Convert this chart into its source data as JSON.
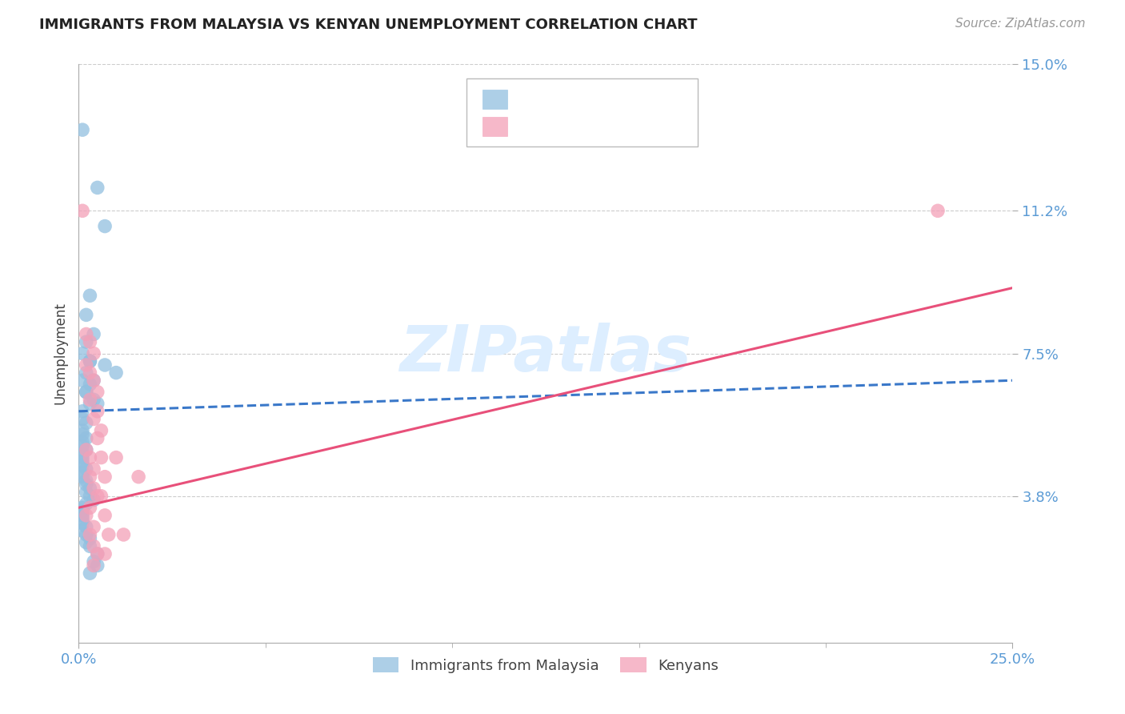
{
  "title": "IMMIGRANTS FROM MALAYSIA VS KENYAN UNEMPLOYMENT CORRELATION CHART",
  "source": "Source: ZipAtlas.com",
  "ylabel": "Unemployment",
  "xlim": [
    0.0,
    0.25
  ],
  "ylim": [
    0.0,
    0.15
  ],
  "xticks": [
    0.0,
    0.25
  ],
  "xticklabels": [
    "0.0%",
    "25.0%"
  ],
  "yticks": [
    0.038,
    0.075,
    0.112,
    0.15
  ],
  "yticklabels": [
    "3.8%",
    "7.5%",
    "11.2%",
    "15.0%"
  ],
  "tick_color": "#5b9bd5",
  "blue_dot_color": "#92c0e0",
  "pink_dot_color": "#f4a0b8",
  "blue_line_color": "#3a78c9",
  "pink_line_color": "#e8507a",
  "watermark": "ZIPatlas",
  "watermark_color": "#ddeeff",
  "label1": "Immigrants from Malaysia",
  "label2": "Kenyans",
  "legend_r1_color": "#5b9bd5",
  "legend_n1_color": "#5b9bd5",
  "legend_r2_color": "#e87a97",
  "legend_n2_color": "#e87a97",
  "blue_line_x0": 0.0,
  "blue_line_x1": 0.25,
  "blue_line_y0": 0.06,
  "blue_line_y1": 0.068,
  "pink_line_x0": 0.0,
  "pink_line_x1": 0.25,
  "pink_line_y0": 0.035,
  "pink_line_y1": 0.092,
  "blue_dots": [
    [
      0.001,
      0.133
    ],
    [
      0.005,
      0.118
    ],
    [
      0.007,
      0.108
    ],
    [
      0.003,
      0.09
    ],
    [
      0.002,
      0.085
    ],
    [
      0.004,
      0.08
    ],
    [
      0.002,
      0.078
    ],
    [
      0.001,
      0.075
    ],
    [
      0.003,
      0.073
    ],
    [
      0.002,
      0.07
    ],
    [
      0.001,
      0.068
    ],
    [
      0.003,
      0.067
    ],
    [
      0.002,
      0.065
    ],
    [
      0.004,
      0.063
    ],
    [
      0.003,
      0.062
    ],
    [
      0.003,
      0.073
    ],
    [
      0.004,
      0.068
    ],
    [
      0.002,
      0.065
    ],
    [
      0.005,
      0.062
    ],
    [
      0.001,
      0.06
    ],
    [
      0.001,
      0.058
    ],
    [
      0.002,
      0.057
    ],
    [
      0.001,
      0.055
    ],
    [
      0.001,
      0.054
    ],
    [
      0.002,
      0.053
    ],
    [
      0.001,
      0.052
    ],
    [
      0.001,
      0.051
    ],
    [
      0.002,
      0.05
    ],
    [
      0.001,
      0.049
    ],
    [
      0.001,
      0.048
    ],
    [
      0.001,
      0.047
    ],
    [
      0.001,
      0.046
    ],
    [
      0.002,
      0.045
    ],
    [
      0.001,
      0.044
    ],
    [
      0.001,
      0.043
    ],
    [
      0.002,
      0.042
    ],
    [
      0.002,
      0.041
    ],
    [
      0.003,
      0.04
    ],
    [
      0.002,
      0.039
    ],
    [
      0.003,
      0.038
    ],
    [
      0.004,
      0.037
    ],
    [
      0.002,
      0.036
    ],
    [
      0.001,
      0.035
    ],
    [
      0.001,
      0.034
    ],
    [
      0.001,
      0.033
    ],
    [
      0.001,
      0.032
    ],
    [
      0.001,
      0.031
    ],
    [
      0.002,
      0.03
    ],
    [
      0.001,
      0.029
    ],
    [
      0.002,
      0.028
    ],
    [
      0.003,
      0.027
    ],
    [
      0.002,
      0.026
    ],
    [
      0.003,
      0.025
    ],
    [
      0.005,
      0.023
    ],
    [
      0.007,
      0.072
    ],
    [
      0.01,
      0.07
    ],
    [
      0.004,
      0.021
    ],
    [
      0.005,
      0.02
    ],
    [
      0.003,
      0.018
    ]
  ],
  "pink_dots": [
    [
      0.001,
      0.112
    ],
    [
      0.002,
      0.08
    ],
    [
      0.003,
      0.078
    ],
    [
      0.004,
      0.075
    ],
    [
      0.002,
      0.072
    ],
    [
      0.003,
      0.07
    ],
    [
      0.004,
      0.068
    ],
    [
      0.005,
      0.065
    ],
    [
      0.003,
      0.063
    ],
    [
      0.005,
      0.06
    ],
    [
      0.004,
      0.058
    ],
    [
      0.006,
      0.055
    ],
    [
      0.005,
      0.053
    ],
    [
      0.002,
      0.05
    ],
    [
      0.003,
      0.048
    ],
    [
      0.004,
      0.045
    ],
    [
      0.003,
      0.043
    ],
    [
      0.004,
      0.04
    ],
    [
      0.005,
      0.038
    ],
    [
      0.003,
      0.035
    ],
    [
      0.002,
      0.033
    ],
    [
      0.004,
      0.03
    ],
    [
      0.003,
      0.028
    ],
    [
      0.004,
      0.025
    ],
    [
      0.005,
      0.023
    ],
    [
      0.004,
      0.02
    ],
    [
      0.006,
      0.048
    ],
    [
      0.007,
      0.043
    ],
    [
      0.006,
      0.038
    ],
    [
      0.007,
      0.033
    ],
    [
      0.008,
      0.028
    ],
    [
      0.007,
      0.023
    ],
    [
      0.01,
      0.048
    ],
    [
      0.016,
      0.043
    ],
    [
      0.012,
      0.028
    ],
    [
      0.23,
      0.112
    ]
  ]
}
